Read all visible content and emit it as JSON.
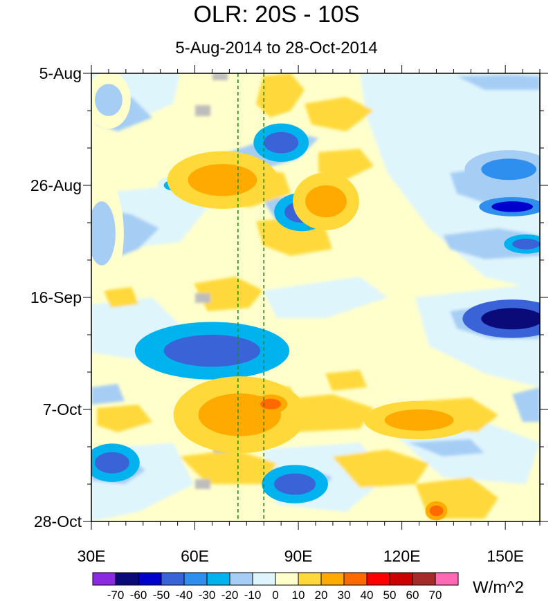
{
  "chart_data": {
    "type": "heatmap",
    "title": "OLR: 20S - 10S",
    "subtitle": "5-Aug-2014 to 28-Oct-2014",
    "x_axis": {
      "range": [
        30,
        160
      ],
      "ticks": [
        {
          "value": 30,
          "label": "30E"
        },
        {
          "value": 60,
          "label": "60E"
        },
        {
          "value": 90,
          "label": "90E"
        },
        {
          "value": 120,
          "label": "120E"
        },
        {
          "value": 150,
          "label": "150E"
        }
      ]
    },
    "y_axis": {
      "range_days": [
        0,
        84
      ],
      "direction": "top-to-bottom",
      "ticks": [
        {
          "value": 0,
          "label": "5-Aug"
        },
        {
          "value": 21,
          "label": "26-Aug"
        },
        {
          "value": 42,
          "label": "16-Sep"
        },
        {
          "value": 63,
          "label": "7-Oct"
        },
        {
          "value": 84,
          "label": "28-Oct"
        }
      ]
    },
    "reference_lines_lon": [
      72.5,
      80
    ],
    "colorbar": {
      "units": "W/m^2",
      "levels": [
        "-70",
        "-60",
        "-50",
        "-40",
        "-30",
        "-20",
        "-10",
        "0",
        "10",
        "20",
        "30",
        "40",
        "50",
        "60",
        "70"
      ],
      "colors": [
        "#8a2be2",
        "#0a0a78",
        "#0000cd",
        "#3a63d8",
        "#2f8fef",
        "#00b2ee",
        "#a6cef5",
        "#dff5fc",
        "#ffffcc",
        "#ffd93a",
        "#ffaa00",
        "#ff6a00",
        "#ff0000",
        "#cc0000",
        "#a52a2a",
        "#ff69b4"
      ]
    },
    "features": [
      {
        "kind": "negative",
        "level": -20,
        "lon": 35,
        "day": 5,
        "dlon": 4,
        "dday": 3
      },
      {
        "kind": "negative",
        "level": -20,
        "lon": 33,
        "day": 30,
        "dlon": 4,
        "dday": 6
      },
      {
        "kind": "negative",
        "level": -30,
        "lon": 54,
        "day": 21,
        "dlon": 3,
        "dday": 1
      },
      {
        "kind": "negative",
        "level": -50,
        "lon": 85,
        "day": 13,
        "dlon": 5,
        "dday": 2
      },
      {
        "kind": "negative",
        "level": -50,
        "lon": 91,
        "day": 26,
        "dlon": 5,
        "dday": 2
      },
      {
        "kind": "negative",
        "level": -50,
        "lon": 65,
        "day": 52,
        "dlon": 14,
        "dday": 3
      },
      {
        "kind": "negative",
        "level": -50,
        "lon": 36,
        "day": 73,
        "dlon": 5,
        "dday": 2
      },
      {
        "kind": "negative",
        "level": -50,
        "lon": 89,
        "day": 77,
        "dlon": 6,
        "dday": 2
      },
      {
        "kind": "negative",
        "level": -70,
        "lon": 152,
        "day": 46,
        "dlon": 9,
        "dday": 2
      },
      {
        "kind": "negative",
        "level": -60,
        "lon": 152,
        "day": 25,
        "dlon": 6,
        "dday": 1
      },
      {
        "kind": "negative",
        "level": -50,
        "lon": 156,
        "day": 32,
        "dlon": 4,
        "dday": 1
      },
      {
        "kind": "negative",
        "level": -40,
        "lon": 151,
        "day": 18,
        "dlon": 8,
        "dday": 2
      },
      {
        "kind": "positive",
        "level": 20,
        "lon": 68,
        "day": 20,
        "dlon": 10,
        "dday": 3
      },
      {
        "kind": "positive",
        "level": 20,
        "lon": 73,
        "day": 64,
        "dlon": 12,
        "dday": 4
      },
      {
        "kind": "positive",
        "level": 20,
        "lon": 98,
        "day": 24,
        "dlon": 6,
        "dday": 3
      },
      {
        "kind": "positive",
        "level": 20,
        "lon": 125,
        "day": 65,
        "dlon": 10,
        "dday": 2
      },
      {
        "kind": "positive",
        "level": 30,
        "lon": 82,
        "day": 62,
        "dlon": 3,
        "dday": 1
      },
      {
        "kind": "positive",
        "level": 30,
        "lon": 130,
        "day": 82,
        "dlon": 2,
        "dday": 1
      }
    ]
  }
}
